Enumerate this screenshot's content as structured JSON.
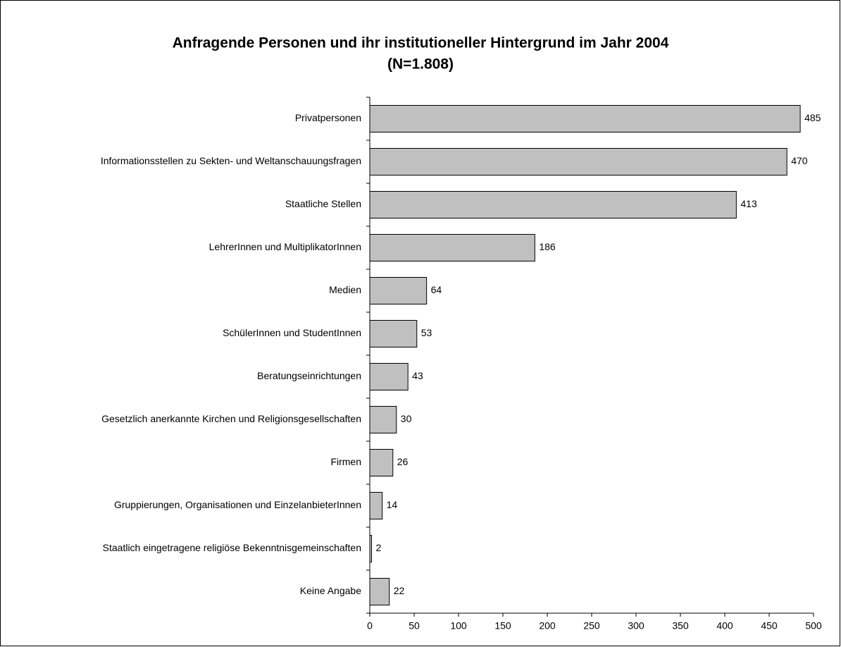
{
  "chart_data": {
    "type": "bar",
    "orientation": "horizontal",
    "title": "Anfragende Personen und ihr institutioneller Hintergrund im Jahr 2004",
    "subtitle": "(N=1.808)",
    "categories": [
      "Privatpersonen",
      "Informationsstellen zu Sekten- und Weltanschauungsfragen",
      "Staatliche Stellen",
      "LehrerInnen und MultiplikatorInnen",
      "Medien",
      "SchülerInnen und StudentInnen",
      "Beratungseinrichtungen",
      "Gesetzlich anerkannte Kirchen und Religionsgesellschaften",
      "Firmen",
      "Gruppierungen, Organisationen und EinzelanbieterInnen",
      "Staatlich eingetragene religiöse  Bekenntnisgemeinschaften",
      "Keine Angabe"
    ],
    "values": [
      485,
      470,
      413,
      186,
      64,
      53,
      43,
      30,
      26,
      14,
      2,
      22
    ],
    "color": "#c0c0c0",
    "xlim": [
      0,
      500
    ],
    "xticks": [
      0,
      50,
      100,
      150,
      200,
      250,
      300,
      350,
      400,
      450,
      500
    ],
    "grid": false
  }
}
